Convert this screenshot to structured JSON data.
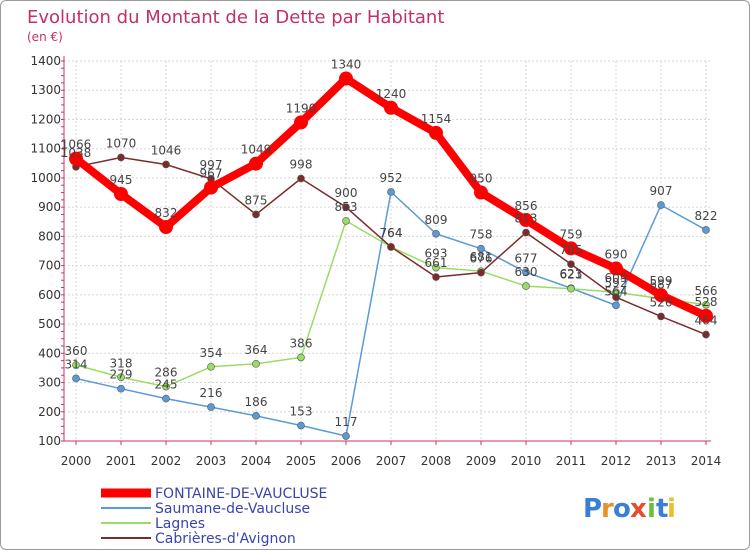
{
  "chart_data": {
    "type": "line",
    "title": "Evolution du Montant de la Dette par Habitant",
    "subtitle": "(en €)",
    "xlabel": "",
    "ylabel": "",
    "x": [
      "2000",
      "2001",
      "2002",
      "2003",
      "2004",
      "2005",
      "2006",
      "2007",
      "2008",
      "2009",
      "2010",
      "2011",
      "2012",
      "2013",
      "2014"
    ],
    "yticks": [
      "100",
      "200",
      "300",
      "400",
      "500",
      "600",
      "700",
      "800",
      "900",
      "1000",
      "1100",
      "1200",
      "1300",
      "1400"
    ],
    "ylim": [
      100,
      1400
    ],
    "grid": true,
    "legend_placement": "bottom-left",
    "series": [
      {
        "name": "FONTAINE-DE-VAUCLUSE",
        "color": "#ff0000",
        "values": [
          1066,
          945,
          832,
          967,
          1049,
          1190,
          1340,
          1240,
          1154,
          950,
          856,
          759,
          690,
          599,
          528
        ]
      },
      {
        "name": "Saumane-de-Vaucluse",
        "color": "#5b9bd5",
        "values": [
          314,
          279,
          245,
          216,
          186,
          153,
          117,
          952,
          809,
          758,
          677,
          623,
          564,
          907,
          822
        ]
      },
      {
        "name": "Lagnes",
        "color": "#99dd66",
        "values": [
          360,
          318,
          286,
          354,
          364,
          386,
          853,
          764,
          693,
          681,
          630,
          621,
          609,
          587,
          566
        ]
      },
      {
        "name": "Cabrières-d'Avignon",
        "color": "#7b2b2b",
        "values": [
          1038,
          1070,
          1046,
          997,
          875,
          998,
          900,
          764,
          661,
          676,
          813,
          705,
          592,
          526,
          464
        ]
      }
    ]
  },
  "logo": {
    "text": "Proxiti",
    "letters": [
      "P",
      "r",
      "o",
      "x",
      "i",
      "t",
      "i"
    ],
    "colors": [
      "#3a7fd6",
      "#e8902a",
      "#3a7fd6",
      "#e84c2a",
      "#6bbf3a",
      "#3a7fd6",
      "#e8c02a"
    ]
  }
}
